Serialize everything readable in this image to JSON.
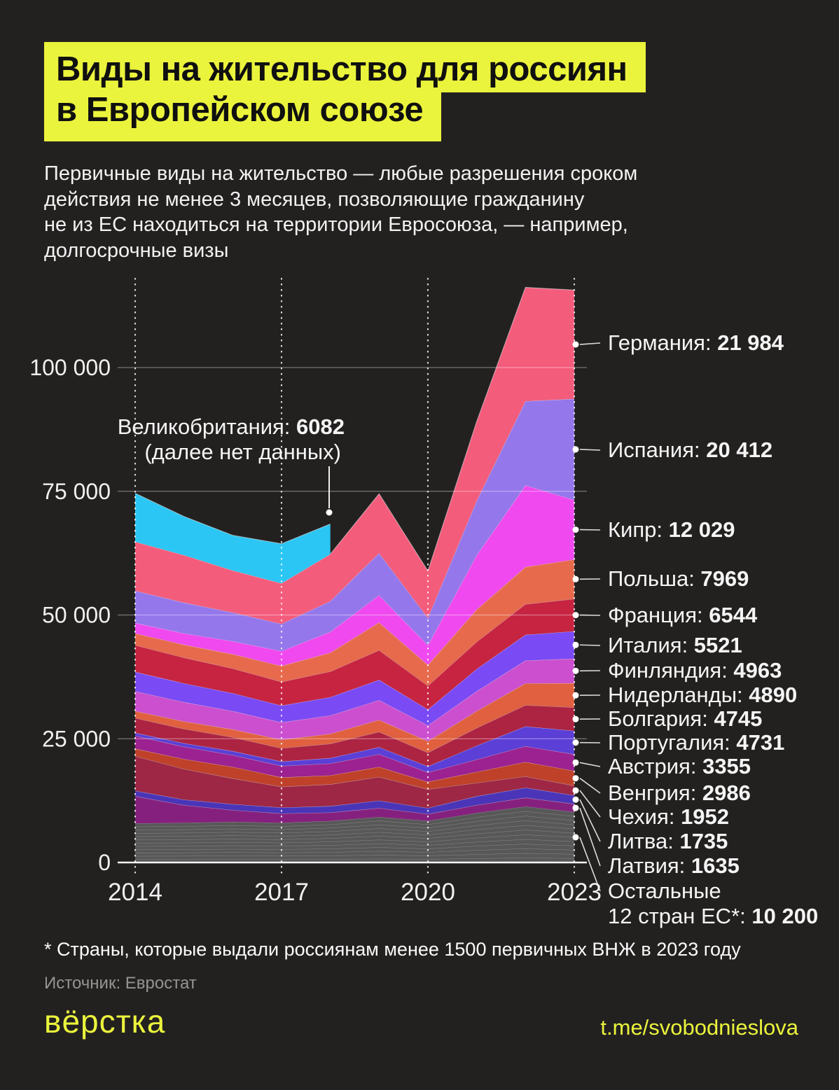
{
  "header": {
    "title_line1": "Виды на жительство для россиян",
    "title_line2": "в Европейском союзе"
  },
  "subtitle": "Первичные виды на жительство — любые разрешения сроком\nдействия не менее 3 месяцев, позволяющие гражданину\nне из ЕС находиться на территории Евросоюза, — например,\nдолгосрочные визы",
  "footnote": "* Страны, которые выдали россиянам менее 1500 первичных ВНЖ в 2023 году",
  "source": "Источник: Евростат",
  "logo": "вёрстка",
  "telegram": "t.me/svobodnieslova",
  "colors": {
    "background": "#232120",
    "accent_yellow": "#EBF43C",
    "text": "#F2F2F2",
    "muted_text": "#949494",
    "grid": "rgba(255,255,255,0.38)",
    "axis": "#FFFFFF"
  },
  "chart_data": {
    "type": "area",
    "stacked": true,
    "grid": true,
    "legend_position": "right",
    "title": "Первичные виды на жительство для россиян в ЕС",
    "years": [
      2014,
      2015,
      2016,
      2017,
      2018,
      2019,
      2020,
      2021,
      2022,
      2023
    ],
    "x_ticks": [
      "2014",
      "2017",
      "2020",
      "2023"
    ],
    "y_ticks": [
      {
        "value": 0,
        "label": "0"
      },
      {
        "value": 25000,
        "label": "25 000"
      },
      {
        "value": 50000,
        "label": "50 000"
      },
      {
        "value": 75000,
        "label": "75 000"
      },
      {
        "value": 100000,
        "label": "100 000"
      }
    ],
    "ylim": [
      0,
      120000
    ],
    "note": "2023 values are labeled on the chart; 2014-2022 values are estimated from the plotted areas. Series listed bottom-to-top of the stack.",
    "series": [
      {
        "name": "Остальные 12 стран ЕС*",
        "label_lines": [
          "Остальные",
          "12 стран ЕС*"
        ],
        "value_2023": 10200,
        "value_display": "10 200",
        "color": "#585858",
        "striped": true,
        "values": [
          7900,
          8000,
          8200,
          8000,
          8400,
          9200,
          8400,
          10000,
          11300,
          10200
        ]
      },
      {
        "name": "Латвия",
        "value_2023": 1635,
        "value_display": "1635",
        "color": "#86207F",
        "values": [
          5500,
          3600,
          2400,
          1900,
          1700,
          1800,
          1400,
          1600,
          1800,
          1635
        ]
      },
      {
        "name": "Литва",
        "value_2023": 1735,
        "value_display": "1735",
        "color": "#4A35B8",
        "values": [
          1100,
          1100,
          1200,
          1200,
          1300,
          1500,
          1200,
          1800,
          2000,
          1735
        ]
      },
      {
        "name": "Чехия",
        "value_2023": 1952,
        "value_display": "1952",
        "color": "#9E2745",
        "values": [
          7000,
          6200,
          5200,
          4200,
          4400,
          4800,
          3800,
          2700,
          2300,
          1952
        ]
      },
      {
        "name": "Венгрия",
        "value_2023": 2986,
        "value_display": "2986",
        "color": "#BF4129",
        "values": [
          1500,
          2000,
          2300,
          1900,
          1800,
          2000,
          1500,
          2200,
          2900,
          2986
        ]
      },
      {
        "name": "Австрия",
        "value_2023": 3355,
        "value_display": "3355",
        "color": "#9C2191",
        "values": [
          2600,
          2500,
          2400,
          2300,
          2400,
          2600,
          1900,
          2500,
          3200,
          3355
        ]
      },
      {
        "name": "Португалия",
        "value_2023": 4731,
        "value_display": "4731",
        "color": "#5B3FD6",
        "values": [
          600,
          700,
          800,
          900,
          1100,
          1400,
          1200,
          2800,
          4000,
          4731
        ]
      },
      {
        "name": "Болгария",
        "value_2023": 4745,
        "value_display": "4745",
        "color": "#AD2342",
        "values": [
          3000,
          2900,
          2800,
          2700,
          2900,
          3100,
          2800,
          3600,
          4300,
          4745
        ]
      },
      {
        "name": "Нидерланды",
        "value_2023": 4890,
        "value_display": "4890",
        "color": "#E0603F",
        "values": [
          1400,
          1500,
          1600,
          1700,
          2000,
          2400,
          2300,
          3400,
          4400,
          4890
        ]
      },
      {
        "name": "Финляндия",
        "value_2023": 4963,
        "value_display": "4963",
        "color": "#CC4FD0",
        "values": [
          4000,
          3900,
          3700,
          3500,
          3700,
          4000,
          3200,
          4000,
          4600,
          4963
        ]
      },
      {
        "name": "Италия",
        "value_2023": 5521,
        "value_display": "5521",
        "color": "#7A4AF5",
        "values": [
          3900,
          3800,
          3600,
          3400,
          3700,
          4100,
          3200,
          4500,
          5200,
          5521
        ]
      },
      {
        "name": "Франция",
        "value_2023": 6544,
        "value_display": "6544",
        "color": "#C62441",
        "values": [
          5400,
          5200,
          5000,
          4800,
          5200,
          6000,
          4800,
          5500,
          6200,
          6544
        ]
      },
      {
        "name": "Польша",
        "value_2023": 7969,
        "value_display": "7969",
        "color": "#E76A4D",
        "values": [
          2400,
          2600,
          2900,
          3200,
          3800,
          5600,
          4200,
          6500,
          7500,
          7969
        ]
      },
      {
        "name": "Кипр",
        "value_2023": 12029,
        "value_display": "12 029",
        "color": "#EF49EF",
        "values": [
          2100,
          2300,
          2600,
          3000,
          4200,
          5500,
          4000,
          11000,
          16500,
          12029
        ]
      },
      {
        "name": "Испания",
        "value_2023": 20412,
        "value_display": "20 412",
        "color": "#9577EC",
        "values": [
          6500,
          6200,
          5800,
          5500,
          6200,
          8500,
          5500,
          11000,
          17000,
          20412
        ]
      },
      {
        "name": "Германия",
        "value_2023": 21984,
        "value_display": "21 984",
        "color": "#F45C7C",
        "values": [
          9900,
          9600,
          8500,
          8200,
          9500,
          12000,
          9500,
          16000,
          23000,
          21984
        ]
      }
    ],
    "uk_series": {
      "name": "Великобритания",
      "color": "#2BC6F3",
      "years": [
        2014,
        2015,
        2016,
        2017,
        2018
      ],
      "values": [
        9800,
        7800,
        7100,
        8000,
        6082
      ],
      "annotation": {
        "label": "Великобритания:",
        "value": "6082",
        "note": "(далее нет данных)"
      }
    }
  }
}
